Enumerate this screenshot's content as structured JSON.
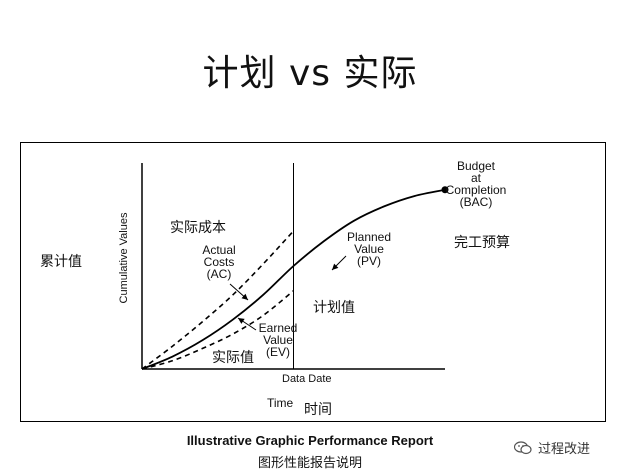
{
  "slide": {
    "title": "计划 vs 实际"
  },
  "chart_data": {
    "type": "line",
    "ylabel": "Cumulative Values",
    "xlabel": "Time",
    "xlim": [
      0,
      1
    ],
    "ylim": [
      0,
      1
    ],
    "grid": false,
    "data_date_label": "Data Date",
    "data_date": 0.5,
    "series": [
      {
        "label_lines": [
          "Actual",
          "Costs",
          "(AC)"
        ],
        "style": "dashed",
        "x": [
          0,
          0.1,
          0.2,
          0.3,
          0.4,
          0.5
        ],
        "y": [
          0,
          0.11,
          0.23,
          0.36,
          0.51,
          0.67
        ]
      },
      {
        "label_lines": [
          "Planned",
          "Value",
          "(PV)"
        ],
        "style": "solid",
        "x": [
          0,
          0.1,
          0.2,
          0.3,
          0.4,
          0.5,
          0.6,
          0.7,
          0.8,
          0.9,
          1.0
        ],
        "y": [
          0,
          0.06,
          0.14,
          0.24,
          0.36,
          0.5,
          0.62,
          0.72,
          0.79,
          0.84,
          0.87
        ]
      },
      {
        "label_lines": [
          "Earned",
          "Value",
          "(EV)"
        ],
        "style": "dashed",
        "x": [
          0,
          0.1,
          0.2,
          0.3,
          0.4,
          0.5
        ],
        "y": [
          0,
          0.04,
          0.1,
          0.17,
          0.26,
          0.38
        ]
      }
    ],
    "bac_label_lines": [
      "Budget",
      "at",
      "Completion",
      "(BAC)"
    ],
    "bac_point": [
      1.0,
      0.87
    ]
  },
  "annotations": {
    "cumulative_cn": "累计值",
    "actual_cost_cn": "实际成本",
    "earned_value_cn": "实际值",
    "planned_value_cn": "计划值",
    "bac_cn": "完工预算",
    "time_cn": "时间"
  },
  "caption": {
    "en": "Illustrative Graphic Performance Report",
    "cn": "图形性能报告说明"
  },
  "watermark": {
    "text": "过程改进",
    "icon": "wechat-icon"
  }
}
